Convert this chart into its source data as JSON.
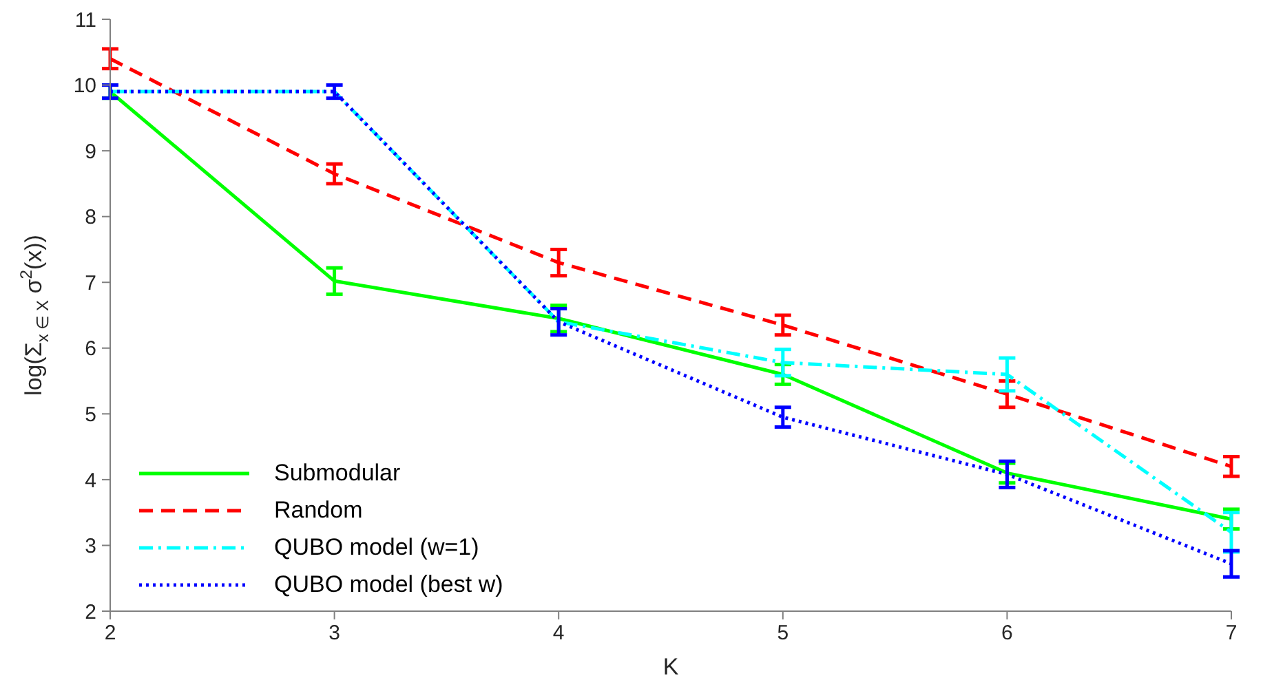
{
  "chart_data": {
    "type": "line",
    "xlabel": "K",
    "ylabel": "log(Σ$_{x ∈ X}$ σ$^{2}$(x))",
    "x": [
      2,
      3,
      4,
      5,
      6,
      7
    ],
    "xlim": [
      2,
      7
    ],
    "xticks": [
      2,
      3,
      4,
      5,
      6,
      7
    ],
    "ylim": [
      2,
      11
    ],
    "yticks": [
      2,
      3,
      4,
      5,
      6,
      7,
      8,
      9,
      10,
      11
    ],
    "legend": "bottom left",
    "marker": "none",
    "series": [
      {
        "name": "Submodular",
        "color": "#00ff00",
        "line_style": "solid",
        "values": [
          9.9,
          7.02,
          6.45,
          5.6,
          4.1,
          3.4
        ],
        "errors": [
          0.1,
          0.2,
          0.2,
          0.15,
          0.15,
          0.15
        ]
      },
      {
        "name": "Random",
        "color": "#ff0000",
        "line_style": "dashed",
        "values": [
          10.4,
          8.65,
          7.3,
          6.35,
          5.3,
          4.2
        ],
        "errors": [
          0.15,
          0.15,
          0.2,
          0.15,
          0.2,
          0.15
        ]
      },
      {
        "name": "QUBO model (w=1)",
        "color": "#00ffff",
        "line_style": "dashdot",
        "values": [
          9.9,
          9.9,
          6.4,
          5.78,
          5.6,
          3.2
        ],
        "errors": [
          null,
          null,
          null,
          0.2,
          0.25,
          0.3
        ]
      },
      {
        "name": "QUBO model (best w)",
        "color": "#0000ff",
        "line_style": "dotted",
        "values": [
          9.9,
          9.9,
          6.4,
          4.95,
          4.08,
          2.72
        ],
        "errors": [
          0.1,
          0.1,
          0.2,
          0.15,
          0.2,
          0.2
        ]
      }
    ]
  }
}
